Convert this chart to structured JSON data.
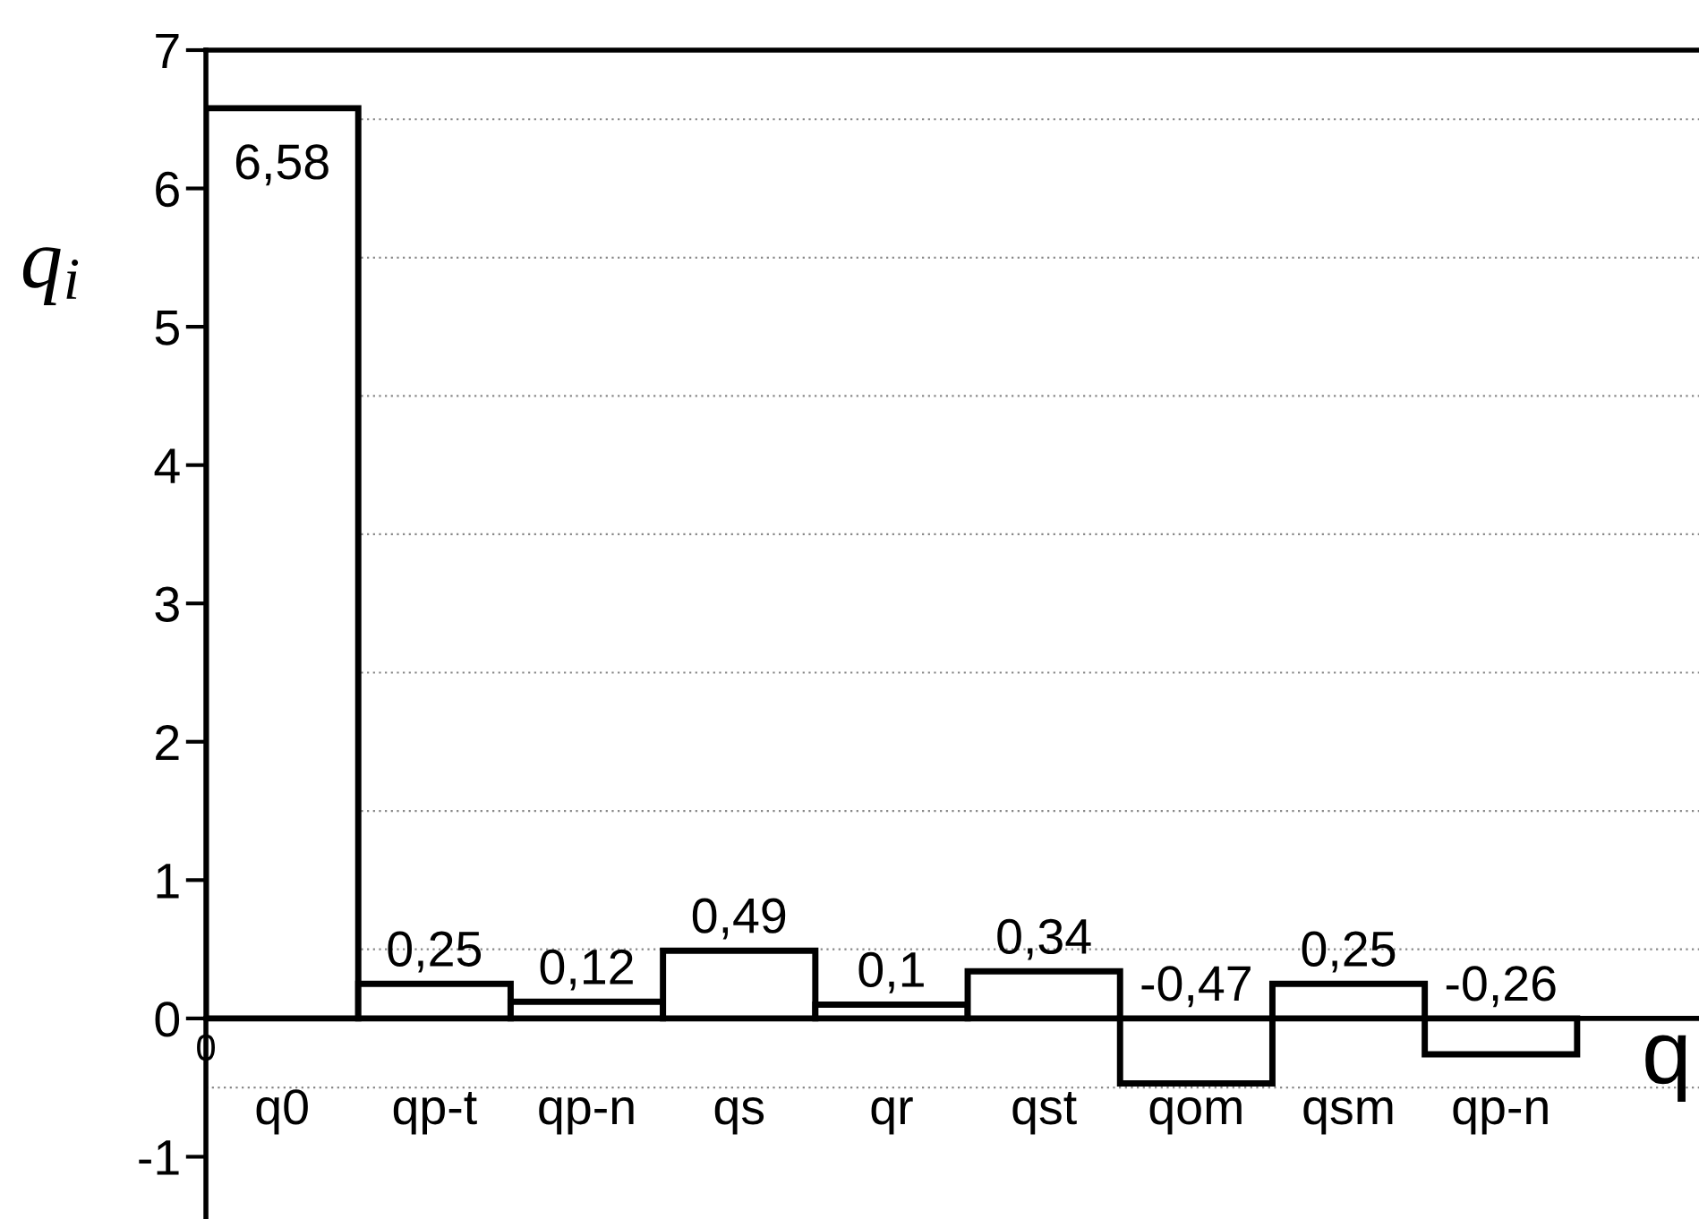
{
  "chart_data": {
    "type": "bar",
    "categories": [
      "q0",
      "qp-t",
      "qp-n",
      "qs",
      "qr",
      "qst",
      "qom",
      "qsm",
      "qp-n"
    ],
    "values": [
      6.58,
      0.25,
      0.12,
      0.49,
      0.1,
      0.34,
      -0.47,
      0.25,
      -0.26
    ],
    "value_labels": [
      "6,58",
      "0,25",
      "0,12",
      "0,49",
      "0,1",
      "0,34",
      "-0,47",
      "0,25",
      "-0,26"
    ],
    "color": "#ffffff",
    "xlabel": "q",
    "ylabel": "q$_{i}$",
    "ylim": [
      -1.45,
      7
    ],
    "yticks": [
      -1,
      0,
      1,
      2,
      3,
      4,
      5,
      6,
      7
    ],
    "grid": "y",
    "annotations": [
      "0"
    ]
  }
}
